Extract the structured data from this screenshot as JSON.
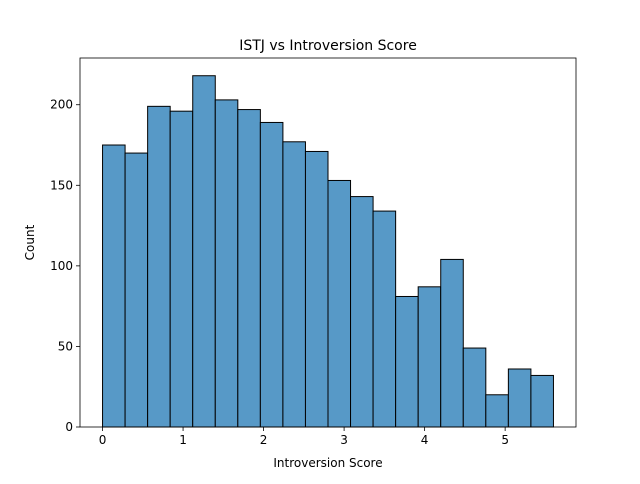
{
  "chart_data": {
    "type": "bar",
    "title": "ISTJ vs Introversion Score",
    "xlabel": "Introversion Score",
    "ylabel": "Count",
    "xlim": [
      -0.28,
      5.88
    ],
    "ylim": [
      0,
      229
    ],
    "xticks": [
      0,
      1,
      2,
      3,
      4,
      5
    ],
    "yticks": [
      0,
      50,
      100,
      150,
      200
    ],
    "bin_edges": [
      0,
      0.28,
      0.56,
      0.84,
      1.12,
      1.4,
      1.68,
      1.96,
      2.24,
      2.52,
      2.8,
      3.08,
      3.36,
      3.64,
      3.92,
      4.2,
      4.48,
      4.76,
      5.04,
      5.32,
      5.6
    ],
    "values": [
      175,
      170,
      199,
      196,
      218,
      203,
      197,
      189,
      177,
      171,
      153,
      143,
      134,
      81,
      87,
      104,
      49,
      20,
      36,
      32
    ],
    "colors": {
      "bar_fill": "#5799c7",
      "bar_edge": "#000000"
    },
    "grid": false,
    "legend": "none"
  }
}
